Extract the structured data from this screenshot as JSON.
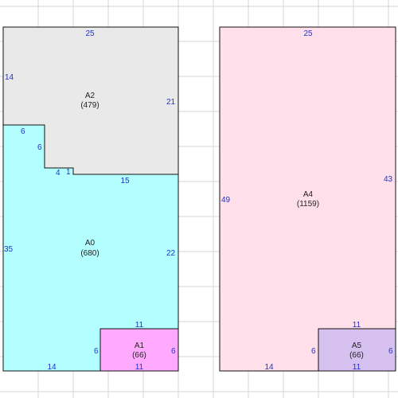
{
  "colors": {
    "grid": "#d6d6d6",
    "outline": "#111111",
    "dimension_text": "#2233cc",
    "label_text": "#222222",
    "A0": "#b3ffff",
    "A1": "#ffaaff",
    "A2": "#e9e9e9",
    "A4": "#ffe0ea",
    "A5": "#d6c1f0"
  },
  "panels": [
    {
      "areas": [
        {
          "id": "A2",
          "name": "A2",
          "area": "(479)"
        },
        {
          "id": "A0",
          "name": "A0",
          "area": "(680)"
        },
        {
          "id": "A1",
          "name": "A1",
          "area": "(66)"
        }
      ],
      "dimensions": [
        "25",
        "14",
        "21",
        "6",
        "6",
        "4",
        "1",
        "15",
        "35",
        "22",
        "11",
        "6",
        "6",
        "14",
        "11"
      ]
    },
    {
      "areas": [
        {
          "id": "A4",
          "name": "A4",
          "area": "(1159)"
        },
        {
          "id": "A5",
          "name": "A5",
          "area": "(66)"
        }
      ],
      "dimensions": [
        "25",
        "49",
        "43",
        "11",
        "6",
        "6",
        "14",
        "11"
      ]
    }
  ]
}
